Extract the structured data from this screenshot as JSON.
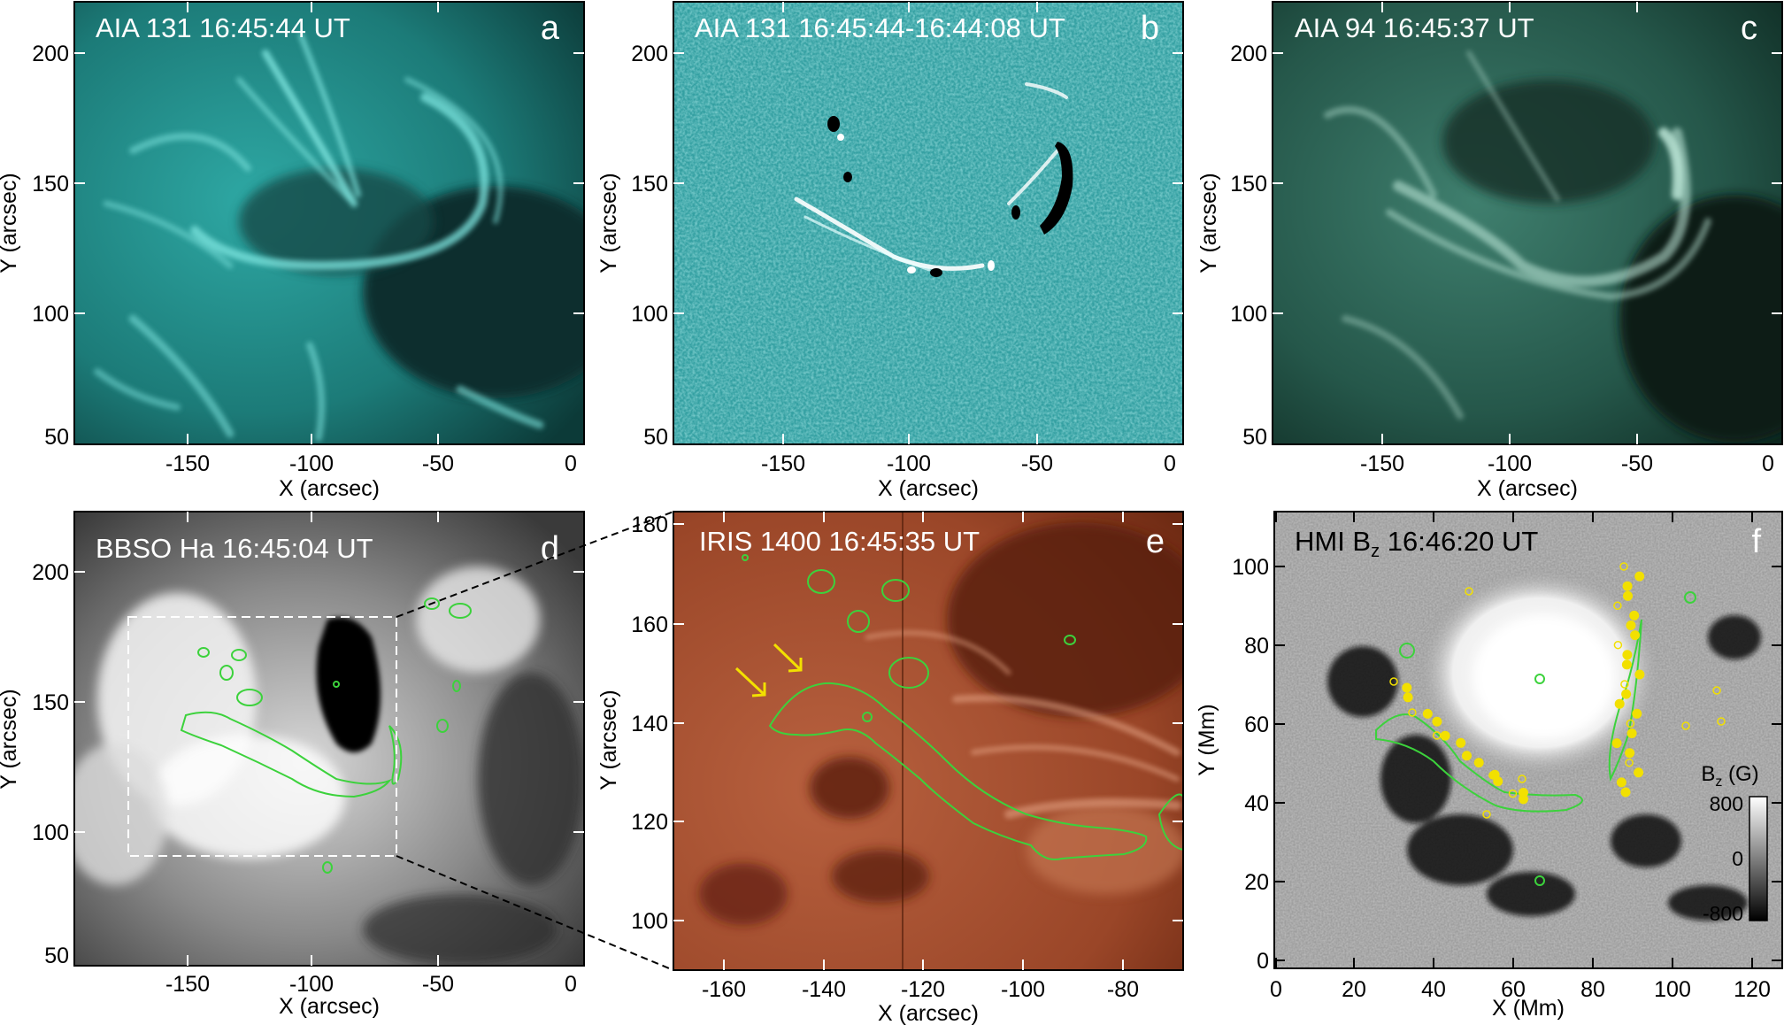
{
  "panels": [
    {
      "id": "a",
      "title": "AIA 131  16:45:44 UT",
      "letter": "a",
      "xlabel": "X (arcsec)",
      "ylabel": "Y (arcsec)",
      "xticks": [
        "-150",
        "-100",
        "-50",
        "0"
      ],
      "yticks": [
        "200",
        "150",
        "100",
        "50"
      ],
      "xrange": [
        -190,
        0
      ],
      "yrange": [
        48,
        218
      ],
      "colormap": "teal"
    },
    {
      "id": "b",
      "title": "AIA 131  16:45:44-16:44:08 UT",
      "letter": "b",
      "xlabel": "X (arcsec)",
      "ylabel": "Y (arcsec)",
      "xticks": [
        "-150",
        "-100",
        "-50",
        "0"
      ],
      "yticks": [
        "200",
        "150",
        "100",
        "50"
      ],
      "xrange": [
        -190,
        0
      ],
      "yrange": [
        48,
        218
      ],
      "colormap": "teal-difference"
    },
    {
      "id": "c",
      "title": "AIA 94  16:45:37 UT",
      "letter": "c",
      "xlabel": "X (arcsec)",
      "ylabel": "Y (arcsec)",
      "xticks": [
        "-150",
        "-100",
        "-50",
        "0"
      ],
      "yticks": [
        "200",
        "150",
        "100",
        "50"
      ],
      "xrange": [
        -190,
        0
      ],
      "yrange": [
        48,
        218
      ],
      "colormap": "green"
    },
    {
      "id": "d",
      "title": "BBSO Ha  16:45:04 UT",
      "letter": "d",
      "xlabel": "X (arcsec)",
      "ylabel": "Y (arcsec)",
      "xticks": [
        "-150",
        "-100",
        "-50",
        "0"
      ],
      "yticks": [
        "200",
        "150",
        "100",
        "50"
      ],
      "xrange": [
        -190,
        0
      ],
      "yrange": [
        48,
        218
      ],
      "colormap": "gray"
    },
    {
      "id": "e",
      "title": "IRIS 1400  16:45:35 UT",
      "letter": "e",
      "xlabel": "X (arcsec)",
      "ylabel": "Y (arcsec)",
      "xticks": [
        "-160",
        "-140",
        "-120",
        "-100",
        "-80"
      ],
      "yticks": [
        "180",
        "160",
        "140",
        "120",
        "100"
      ],
      "xrange": [
        -170,
        -68
      ],
      "yrange": [
        90,
        182
      ],
      "colormap": "red"
    },
    {
      "id": "f",
      "title_main": "HMI B",
      "title_sub": "z",
      "title_time": "  16:46:20 UT",
      "letter": "f",
      "xlabel": "X (Mm)",
      "ylabel": "Y (Mm)",
      "xticks": [
        "0",
        "20",
        "40",
        "60",
        "80",
        "100",
        "120"
      ],
      "yticks": [
        "100",
        "80",
        "60",
        "40",
        "20",
        "0"
      ],
      "xrange": [
        0,
        125
      ],
      "yrange": [
        -2,
        110
      ],
      "colormap": "gray-magnetogram",
      "colorbar": {
        "label_main": "B",
        "label_sub": "z",
        "label_unit": " (G)",
        "ticks": [
          "800",
          "0",
          "-800"
        ],
        "range": [
          -800,
          800
        ]
      }
    }
  ],
  "colors": {
    "contour": "#3cd23c",
    "arrow": "#f2e000",
    "footpoint": "#f2e000",
    "box": "#ffffff",
    "connector": "#000000"
  }
}
